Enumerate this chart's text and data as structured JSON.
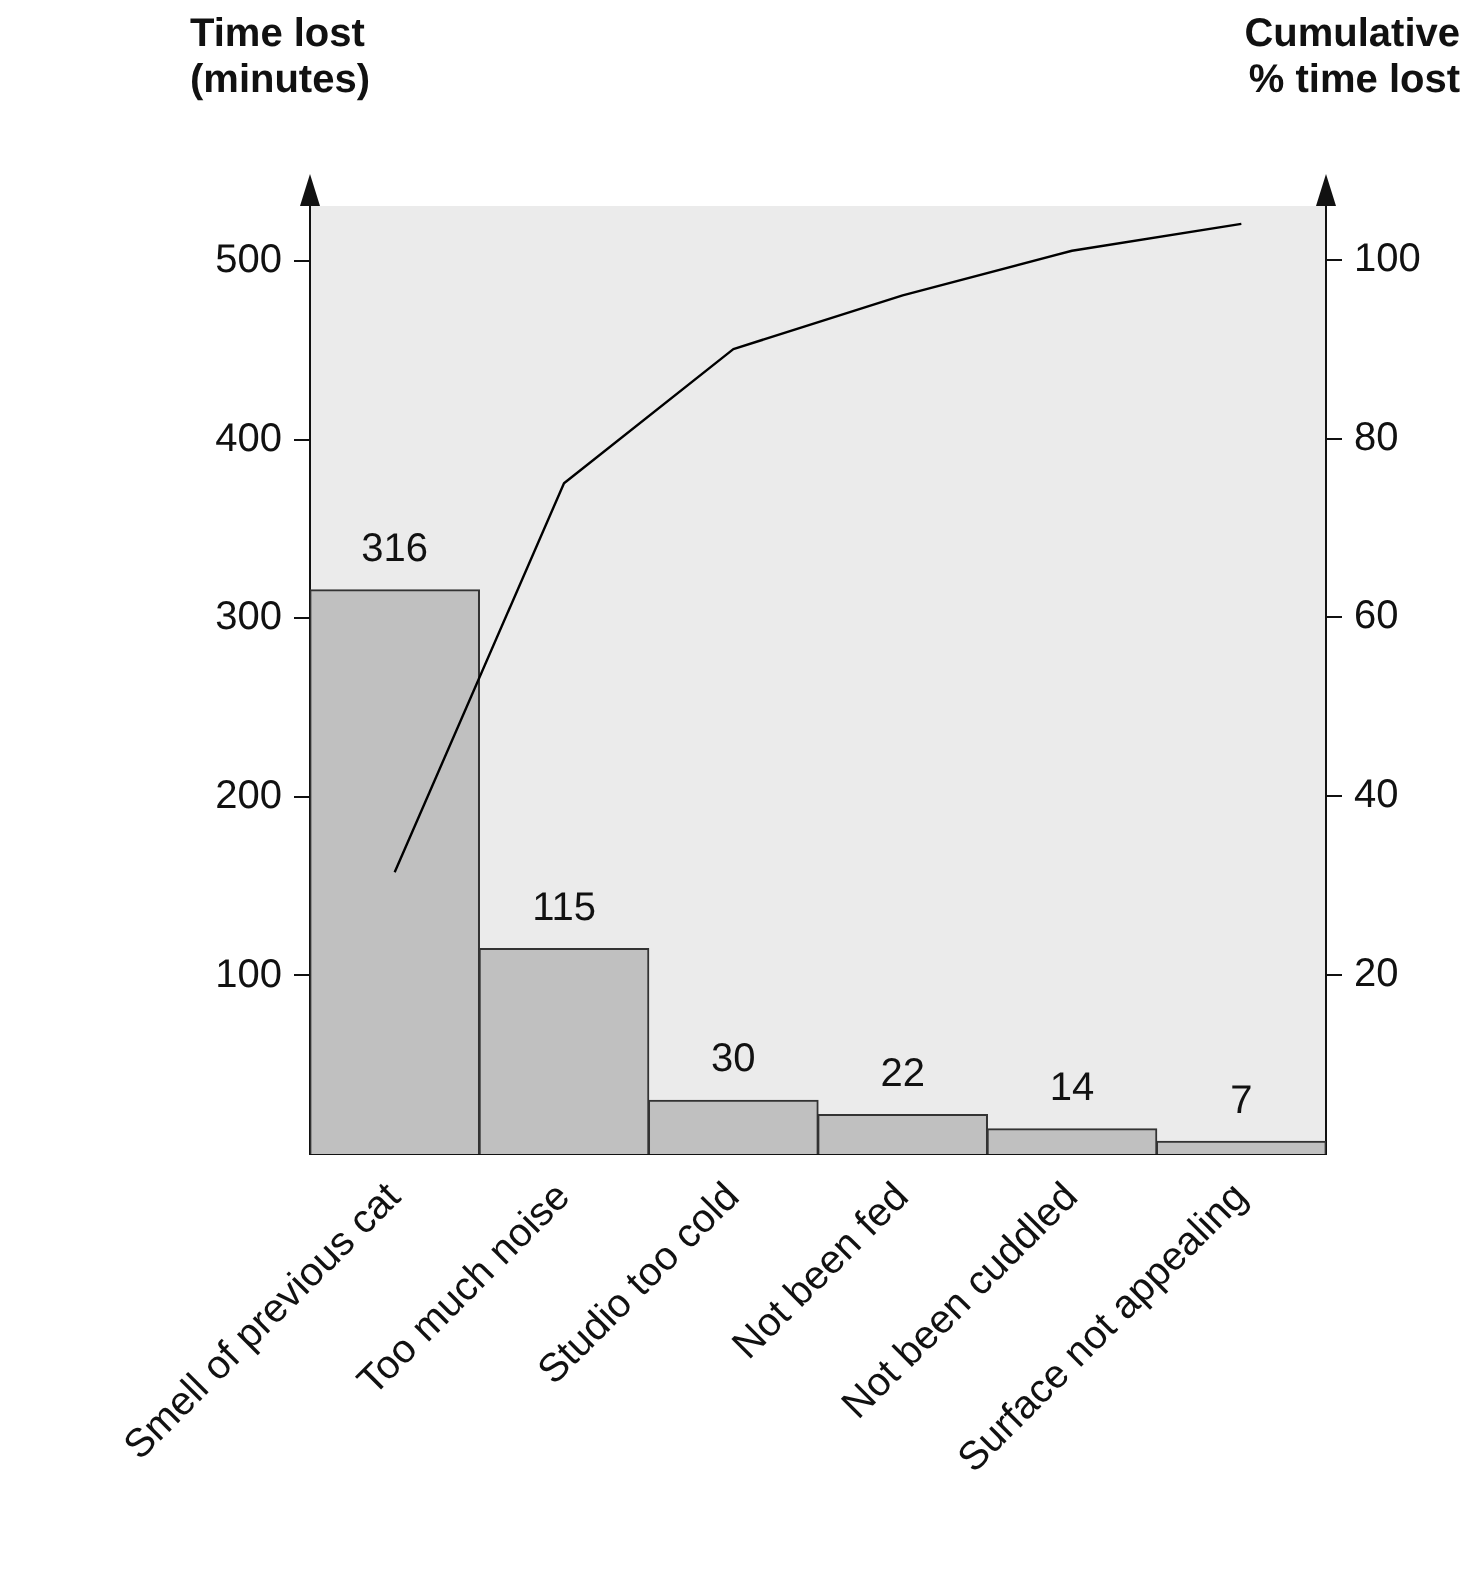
{
  "chart_data": {
    "type": "bar",
    "ylabel": "Time lost\n(minutes)",
    "y2label": "Cumulative\n% time lost",
    "categories": [
      "Smell of previous cat",
      "Too much noise",
      "Studio too cold",
      "Not been fed",
      "Not been cuddled",
      "Surface not appealing"
    ],
    "series": [
      {
        "color": "#c0c0c0",
        "values": [
          316,
          115,
          30,
          22,
          14,
          7
        ],
        "value_labels": [
          "316",
          "115",
          "30",
          "22",
          "14",
          "7"
        ]
      },
      {
        "type": "line",
        "axis": "y2",
        "color": "#000000",
        "values": [
          31.5,
          75,
          90,
          96,
          101,
          104
        ]
      }
    ],
    "ylim": [
      0,
      531
    ],
    "yticks": [
      100,
      200,
      300,
      400,
      500
    ],
    "y2lim": [
      0,
      106
    ],
    "y2ticks": [
      20,
      40,
      60,
      80,
      100
    ],
    "grid": false,
    "legend": false,
    "marker": "none"
  }
}
